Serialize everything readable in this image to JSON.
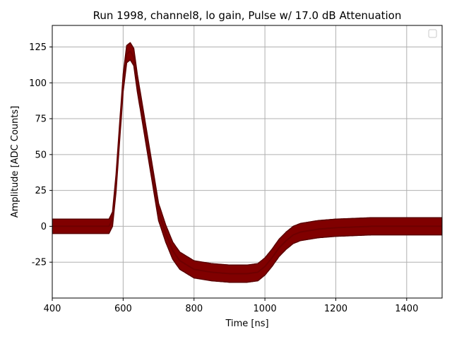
{
  "chart_data": {
    "type": "scatter",
    "title": "Run 1998, channel8, lo gain, Pulse w/ 17.0 dB Attenuation",
    "xlabel": "Time [ns]",
    "ylabel": "Amplitude [ADC Counts]",
    "xlim": [
      400,
      1500
    ],
    "ylim": [
      -50,
      140
    ],
    "xticks": [
      400,
      600,
      800,
      1000,
      1200,
      1400
    ],
    "yticks": [
      -25,
      0,
      25,
      50,
      75,
      100,
      125
    ],
    "grid": true,
    "legend": "top-right, empty",
    "colors": {
      "band": "#800000",
      "band_edge": "#5a0000",
      "outlier_yellow": "#d4b000",
      "outlier_blue": "#3040a0",
      "grid": "#b0b0b0"
    },
    "series": [
      {
        "x": [
          400,
          560,
          570,
          580,
          590,
          600,
          610,
          620,
          630,
          640,
          650,
          660,
          670,
          680,
          690,
          700,
          720,
          740,
          760,
          780,
          800,
          850,
          900,
          950,
          980,
          1000,
          1020,
          1040,
          1060,
          1080,
          1100,
          1150,
          1200,
          1300,
          1400,
          1500
        ],
        "y": [
          0,
          0,
          5,
          30,
          65,
          100,
          120,
          122,
          118,
          100,
          85,
          70,
          55,
          40,
          25,
          10,
          -5,
          -17,
          -24,
          -27,
          -30,
          -32,
          -33,
          -33,
          -32,
          -28,
          -22,
          -15,
          -10,
          -6,
          -4,
          -2,
          -1,
          0,
          0,
          0
        ],
        "band_halfwidth": [
          5,
          5,
          5,
          6,
          6,
          6,
          6,
          6,
          6,
          6,
          6,
          6,
          6,
          6,
          6,
          6,
          6,
          6,
          6,
          6,
          6,
          6,
          6,
          6,
          6,
          6,
          6,
          6,
          6,
          6,
          6,
          6,
          6,
          6,
          6,
          6
        ]
      }
    ]
  }
}
